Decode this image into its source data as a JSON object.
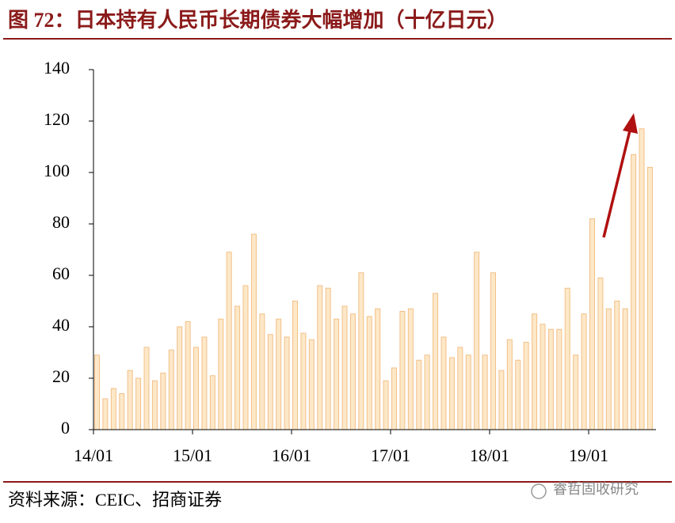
{
  "chart_data": {
    "type": "bar",
    "title": "图 72：日本持有人民币长期债券大幅增加（十亿日元）",
    "source": "资料来源：CEIC、招商证券",
    "watermark": "睿哲固收研究",
    "categories": [
      "14/01",
      null,
      null,
      null,
      null,
      null,
      null,
      null,
      null,
      null,
      null,
      null,
      "15/01",
      null,
      null,
      null,
      null,
      null,
      null,
      null,
      null,
      null,
      null,
      null,
      "16/01",
      null,
      null,
      null,
      null,
      null,
      null,
      null,
      null,
      null,
      null,
      null,
      "17/01",
      null,
      null,
      null,
      null,
      null,
      null,
      null,
      null,
      null,
      null,
      null,
      "18/01",
      null,
      null,
      null,
      null,
      null,
      null,
      null,
      null,
      null,
      null,
      null,
      "19/01",
      null,
      null,
      null,
      null,
      null,
      null,
      null
    ],
    "values": [
      29,
      12,
      16,
      14,
      23,
      20,
      32,
      19,
      22,
      31,
      40,
      42,
      32,
      36,
      21,
      43,
      69,
      48,
      56,
      76,
      45,
      37,
      43,
      36,
      50,
      37.5,
      35,
      56,
      55,
      43,
      48,
      45,
      61,
      44,
      47,
      19,
      24,
      46,
      47,
      27,
      29,
      53,
      36,
      28,
      32,
      29,
      69,
      29,
      61,
      23,
      35,
      27,
      34,
      45,
      41,
      39,
      39,
      55,
      29,
      45,
      82,
      59,
      47,
      50,
      47,
      107,
      117,
      102
    ],
    "color": "#fde8c8",
    "edge_color": "#f2c088",
    "ylim": [
      0,
      140
    ],
    "yticks": [
      0,
      20,
      40,
      60,
      80,
      100,
      120,
      140
    ],
    "grid": false
  }
}
